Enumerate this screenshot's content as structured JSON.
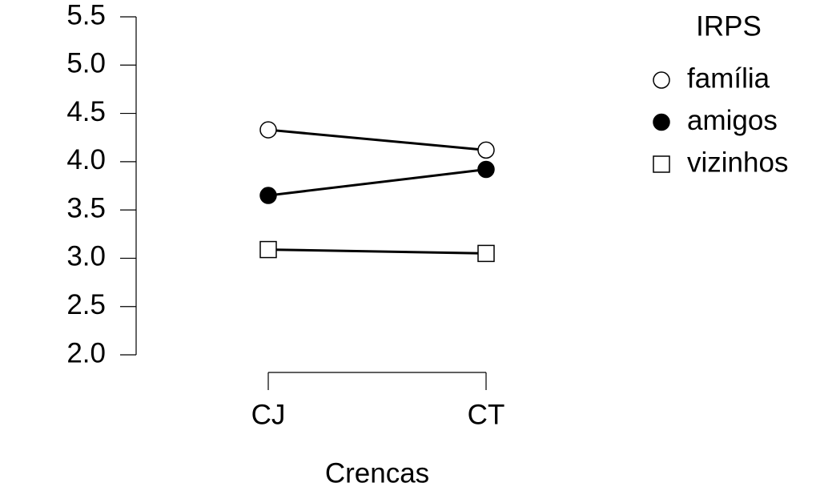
{
  "chart_data": {
    "type": "line",
    "x_label": "Crencas",
    "legend_title": "IRPS",
    "categories": [
      "CJ",
      "CT"
    ],
    "ylim": [
      2.0,
      5.5
    ],
    "yticks": [
      {
        "value": 2.0,
        "label": "2.0"
      },
      2.5,
      {
        "value": 3.0,
        "label": "3.0"
      },
      3.5,
      {
        "value": 4.0,
        "label": "4.0"
      },
      4.5,
      {
        "value": 5.0,
        "label": "5.0"
      },
      5.5
    ],
    "series": [
      {
        "name": "família",
        "color": "#000000",
        "marker": "circle",
        "marker_fill": "#ffffff",
        "values": [
          4.33,
          4.12
        ]
      },
      {
        "name": "amigos",
        "color": "#000000",
        "marker": "circle",
        "marker_fill": "#000000",
        "values": [
          3.65,
          3.92
        ]
      },
      {
        "name": "vizinhos",
        "color": "#000000",
        "marker": "square",
        "marker_fill": "#ffffff",
        "values": [
          3.09,
          3.05
        ]
      }
    ]
  }
}
